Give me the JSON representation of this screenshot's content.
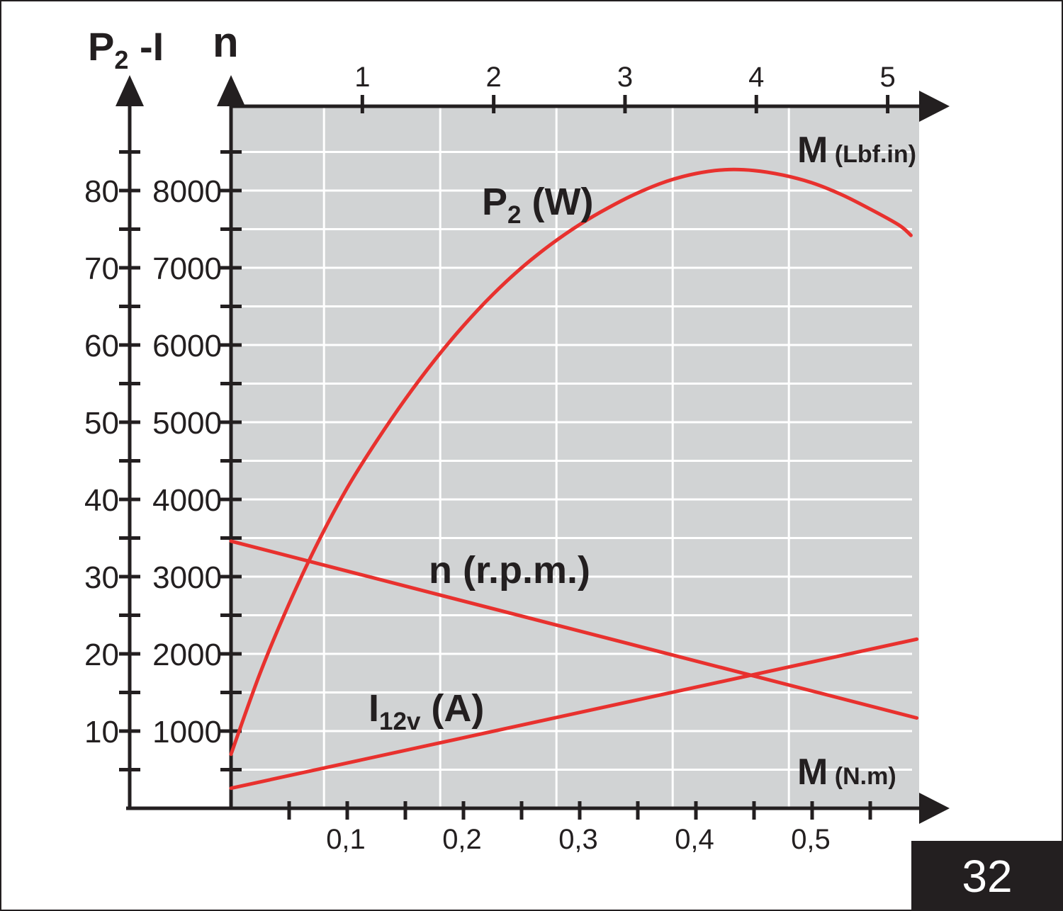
{
  "colors": {
    "plot_bg": "#d1d3d4",
    "grid": "#ffffff",
    "axis": "#231f20",
    "curve": "#e8312e",
    "badge_bg": "#231f20"
  },
  "figure_number": "32",
  "axes": {
    "left_title_main": "P",
    "left_title_sub": "2",
    "left_title_rest": " -I",
    "right_title": "n",
    "top_title_main": "M",
    "top_title_unit": "(Lbf.in)",
    "bottom_title_main": "M",
    "bottom_title_unit": "(N.m)"
  },
  "chart_data": {
    "type": "line",
    "title": "",
    "x_nm": {
      "label": "M (N.m)",
      "range": [
        0,
        0.59
      ],
      "ticks": [
        0.1,
        0.2,
        0.3,
        0.4,
        0.5
      ],
      "tick_labels": [
        "0,1",
        "0,2",
        "0,3",
        "0,4",
        "0,5"
      ],
      "minor_step": 0.05
    },
    "x_lbfin": {
      "label": "M (Lbf.in)",
      "ticks": [
        1,
        2,
        3,
        4,
        5
      ],
      "tick_labels": [
        "1",
        "2",
        "3",
        "4",
        "5"
      ]
    },
    "y_n": {
      "label": "n",
      "range": [
        0,
        9000
      ],
      "ticks": [
        1000,
        2000,
        3000,
        4000,
        5000,
        6000,
        7000,
        8000
      ],
      "tick_labels": [
        "1000",
        "2000",
        "3000",
        "4000",
        "5000",
        "6000",
        "7000",
        "8000"
      ]
    },
    "y_p2_i": {
      "label": "P2 -I",
      "range": [
        0,
        90
      ],
      "ticks": [
        10,
        20,
        30,
        40,
        50,
        60,
        70,
        80
      ],
      "tick_labels": [
        "10",
        "20",
        "30",
        "40",
        "50",
        "60",
        "70",
        "80"
      ]
    },
    "grid": true,
    "series": [
      {
        "name": "P2 (W)",
        "label_main": "P",
        "label_sub": "2",
        "label_rest": " (W)",
        "axis": "p2_i",
        "x": [
          0.0,
          0.025,
          0.05,
          0.075,
          0.1,
          0.125,
          0.15,
          0.175,
          0.2,
          0.225,
          0.25,
          0.275,
          0.3,
          0.325,
          0.35,
          0.375,
          0.4,
          0.425,
          0.45,
          0.475,
          0.5,
          0.525,
          0.55,
          0.575,
          0.585
        ],
        "y": [
          7.0,
          17.5,
          26.5,
          34.5,
          41.5,
          47.5,
          53.0,
          58.0,
          62.5,
          66.5,
          70.0,
          73.0,
          75.6,
          77.8,
          79.7,
          81.2,
          82.2,
          82.7,
          82.6,
          82.0,
          81.0,
          79.5,
          77.6,
          75.5,
          74.2
        ]
      },
      {
        "name": "n (r.p.m.)",
        "label_main": "n",
        "label_sub": "",
        "label_rest": " (r.p.m.)",
        "axis": "n",
        "x": [
          0.0,
          0.59
        ],
        "y": [
          3460,
          1170
        ]
      },
      {
        "name": "I12v (A)",
        "label_main": "I",
        "label_sub": "12v",
        "label_rest": " (A)",
        "axis": "p2_i",
        "x": [
          0.0,
          0.59
        ],
        "y": [
          2.6,
          21.9
        ]
      }
    ]
  }
}
